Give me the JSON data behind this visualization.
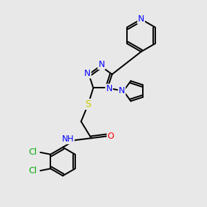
{
  "bg_color": "#e8e8e8",
  "bond_color": "black",
  "bond_width": 1.5,
  "atom_colors": {
    "N": "#0000ff",
    "O": "#ff0000",
    "S": "#cccc00",
    "Cl": "#00aa00",
    "C": "black",
    "H": "#777777"
  },
  "font_size": 9,
  "figsize": [
    3.0,
    3.0
  ],
  "dpi": 100
}
